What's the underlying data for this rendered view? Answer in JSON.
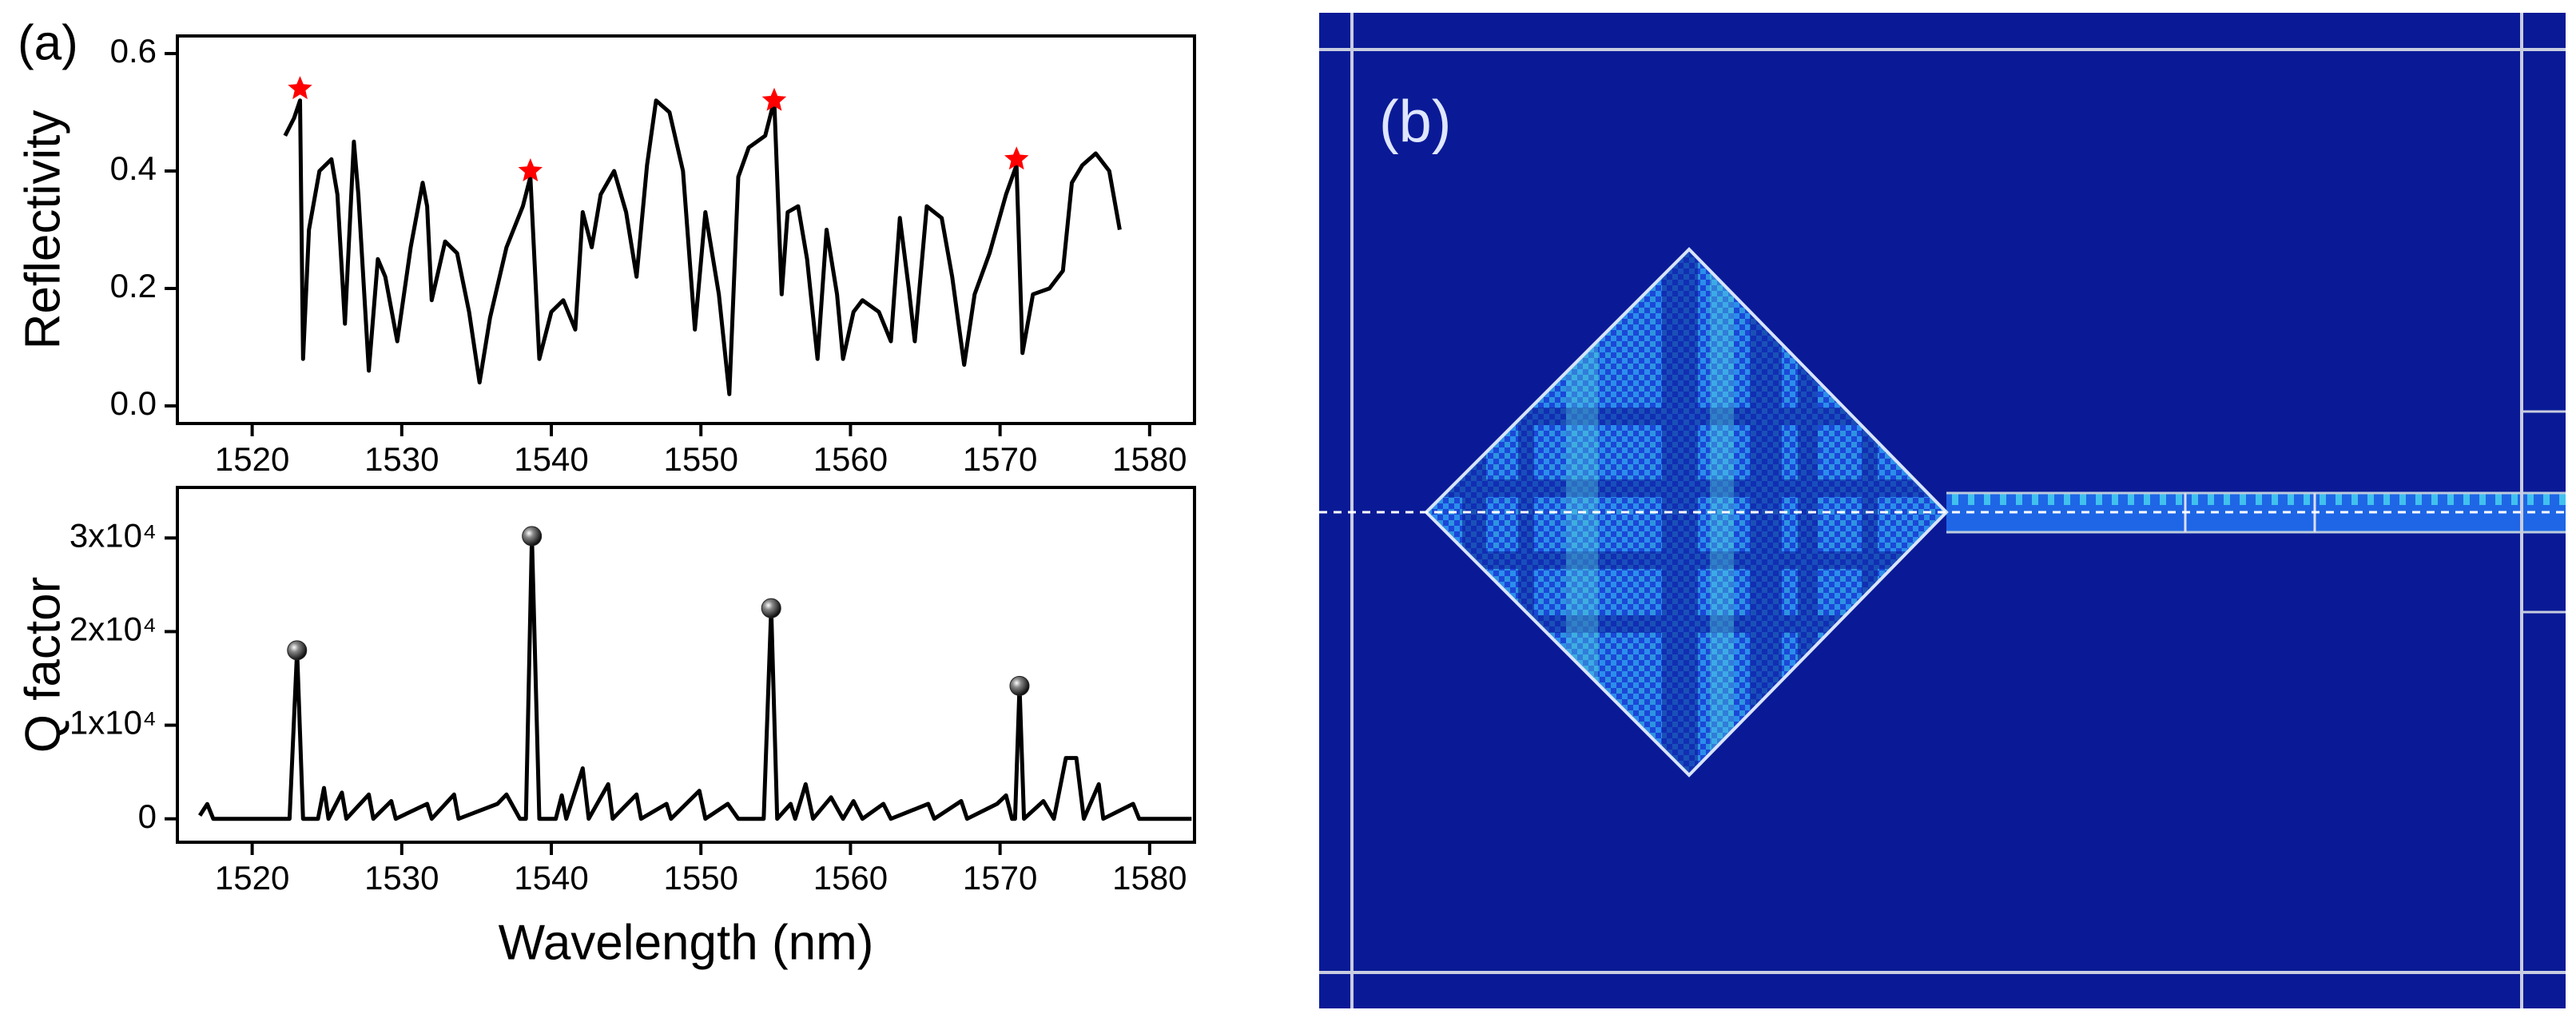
{
  "figure_b": {
    "label": "(b)"
  },
  "chart_data": [
    {
      "type": "line",
      "panel_label": "(a)",
      "ylabel": "Reflectivity",
      "xlim": [
        1515,
        1583
      ],
      "xticks": [
        1520,
        1530,
        1540,
        1550,
        1560,
        1570,
        1580
      ],
      "ylim": [
        -0.03,
        0.63
      ],
      "yticks": [
        {
          "value": 0,
          "label": "0.0"
        },
        0.2,
        0.4,
        0.6
      ],
      "series": [
        {
          "color": "#000000",
          "x": [
            1522.2,
            1522.8,
            1523.2,
            1523.4,
            1523.8,
            1524.5,
            1525.3,
            1525.7,
            1526.2,
            1526.8,
            1527.1,
            1527.8,
            1528.4,
            1528.9,
            1529.7,
            1530.6,
            1531.4,
            1531.7,
            1532.0,
            1532.9,
            1533.7,
            1534.5,
            1535.2,
            1535.9,
            1537.0,
            1538.1,
            1538.6,
            1539.2,
            1540.0,
            1540.8,
            1541.6,
            1542.1,
            1542.7,
            1543.3,
            1544.2,
            1545.0,
            1545.7,
            1546.4,
            1547.0,
            1547.9,
            1548.8,
            1549.6,
            1550.3,
            1551.2,
            1551.9,
            1552.5,
            1553.2,
            1554.3,
            1554.9,
            1555.4,
            1555.8,
            1556.5,
            1557.1,
            1557.8,
            1558.4,
            1559.1,
            1559.5,
            1560.2,
            1560.8,
            1561.9,
            1562.7,
            1563.3,
            1563.9,
            1564.3,
            1565.1,
            1566.1,
            1566.8,
            1567.6,
            1568.3,
            1569.3,
            1570.4,
            1571.1,
            1571.5,
            1572.2,
            1573.3,
            1574.2,
            1574.8,
            1575.5,
            1576.4,
            1577.3,
            1578.0
          ],
          "values": [
            0.46,
            0.49,
            0.52,
            0.08,
            0.3,
            0.4,
            0.42,
            0.36,
            0.14,
            0.45,
            0.36,
            0.06,
            0.25,
            0.22,
            0.11,
            0.27,
            0.38,
            0.34,
            0.18,
            0.28,
            0.26,
            0.16,
            0.04,
            0.15,
            0.27,
            0.34,
            0.39,
            0.08,
            0.16,
            0.18,
            0.13,
            0.33,
            0.27,
            0.36,
            0.4,
            0.33,
            0.22,
            0.41,
            0.52,
            0.5,
            0.4,
            0.13,
            0.33,
            0.19,
            0.02,
            0.39,
            0.44,
            0.46,
            0.52,
            0.19,
            0.33,
            0.34,
            0.25,
            0.08,
            0.3,
            0.19,
            0.08,
            0.16,
            0.18,
            0.16,
            0.11,
            0.32,
            0.2,
            0.11,
            0.34,
            0.32,
            0.22,
            0.07,
            0.19,
            0.26,
            0.36,
            0.41,
            0.09,
            0.19,
            0.2,
            0.23,
            0.38,
            0.41,
            0.43,
            0.4,
            0.3
          ]
        },
        {
          "marker": "star",
          "color": "#ff0000",
          "x": [
            1523.2,
            1538.6,
            1554.9,
            1571.1
          ],
          "values": [
            0.54,
            0.4,
            0.52,
            0.42
          ]
        }
      ]
    },
    {
      "type": "line",
      "ylabel": "Q factor",
      "xlabel": "Wavelength (nm)",
      "xlim": [
        1515,
        1583
      ],
      "xticks": [
        1520,
        1530,
        1540,
        1550,
        1560,
        1570,
        1580
      ],
      "ylim": [
        -2500,
        35400
      ],
      "yticks": [
        0,
        {
          "value": 10000,
          "label": "1x10⁴"
        },
        {
          "value": 20000,
          "label": "2x10⁴"
        },
        {
          "value": 30000,
          "label": "3x10⁴"
        }
      ],
      "series": [
        {
          "color": "#000000",
          "x": [
            1516.5,
            1517.0,
            1517.4,
            1522.5,
            1523.0,
            1523.4,
            1524.4,
            1524.8,
            1525.1,
            1526.0,
            1526.3,
            1527.8,
            1528.1,
            1529.3,
            1529.6,
            1531.7,
            1532.0,
            1533.5,
            1533.8,
            1536.4,
            1537.0,
            1537.9,
            1538.3,
            1538.7,
            1539.2,
            1540.3,
            1540.7,
            1541.0,
            1542.1,
            1542.5,
            1543.8,
            1544.1,
            1545.7,
            1546.0,
            1547.7,
            1548.0,
            1549.9,
            1550.3,
            1551.8,
            1552.5,
            1554.2,
            1554.7,
            1555.1,
            1556.0,
            1556.3,
            1557.0,
            1557.5,
            1558.7,
            1559.5,
            1560.2,
            1560.8,
            1562.2,
            1562.7,
            1565.2,
            1565.6,
            1567.4,
            1567.8,
            1569.8,
            1570.4,
            1570.8,
            1571.0,
            1571.3,
            1571.6,
            1572.9,
            1573.6,
            1574.4,
            1575.1,
            1575.6,
            1576.6,
            1576.9,
            1578.9,
            1579.3,
            1582.8
          ],
          "values": [
            350,
            1580,
            0,
            0,
            18000,
            0,
            0,
            3300,
            0,
            2800,
            0,
            2600,
            0,
            1900,
            0,
            1600,
            0,
            2600,
            0,
            1600,
            2600,
            0,
            0,
            30200,
            0,
            0,
            2500,
            0,
            5400,
            0,
            3700,
            0,
            2600,
            0,
            1600,
            0,
            3000,
            0,
            1600,
            0,
            0,
            22500,
            0,
            1600,
            0,
            3700,
            0,
            2300,
            0,
            1900,
            0,
            1600,
            0,
            1600,
            0,
            1900,
            0,
            1600,
            2500,
            0,
            0,
            14200,
            0,
            1900,
            0,
            6500,
            6500,
            0,
            3700,
            0,
            1600,
            0,
            0
          ]
        },
        {
          "marker": "sphere",
          "color": "#222222",
          "x": [
            1523.0,
            1538.7,
            1554.7,
            1571.3
          ],
          "values": [
            18000,
            30200,
            22500,
            14200
          ]
        }
      ]
    }
  ]
}
